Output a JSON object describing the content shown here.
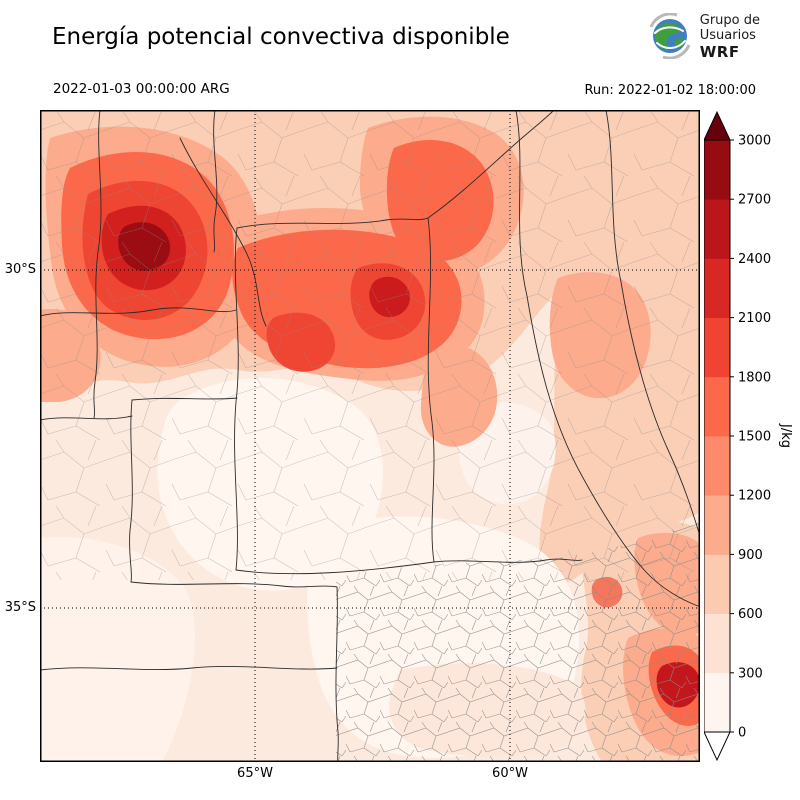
{
  "header": {
    "title": "Energía potencial convectiva disponible",
    "logo": {
      "line1": "Grupo de",
      "line2": "Usuarios",
      "line3": "WRF"
    }
  },
  "times": {
    "valid": "2022-01-03 00:00:00 ARG",
    "run": "Run: 2022-01-02 18:00:00"
  },
  "axes": {
    "y": [
      "30°S",
      "35°S"
    ],
    "x": [
      "65°W",
      "60°W"
    ]
  },
  "colorbar": {
    "label": "J/kg",
    "ticks": [
      0,
      300,
      600,
      900,
      1200,
      1500,
      1800,
      2100,
      2400,
      2700,
      3000
    ],
    "segment_colors": [
      "#fff5f0",
      "#fde2d3",
      "#fcc9b1",
      "#fcab8d",
      "#fc8a6b",
      "#fb694a",
      "#ef4432",
      "#d92723",
      "#bb161b",
      "#970c13"
    ],
    "over_color": "#67000d",
    "under_color": "#ffffff"
  },
  "chart_data": {
    "type": "heatmap",
    "title": "Energía potencial convectiva disponible",
    "variable": "CAPE (convective available potential energy)",
    "units": "J/kg",
    "valid_time": "2022-01-03 00:00:00 ARG",
    "model_run": "2022-01-02 18:00:00",
    "colormap": "Reds, filled contours every 300 J/kg, arrow extensions above 3000 and below 0",
    "levels": [
      0,
      300,
      600,
      900,
      1200,
      1500,
      1800,
      2100,
      2400,
      2700,
      3000
    ],
    "lat_gridlines_visible": [
      "30°S",
      "35°S"
    ],
    "lon_gridlines_visible": [
      "65°W",
      "60°W"
    ],
    "region": "Central/northern Argentina with province and department boundaries",
    "maxima": [
      {
        "approx_location": "~29.7°S 67.3°W (northwest)",
        "approx_value_jkg": "2700–3000+"
      },
      {
        "approx_location": "~30.3°S 63.5°W (north of Córdoba)",
        "approx_value_jkg": "1800–2400"
      },
      {
        "approx_location": "~28.5°S 61.5°W (top-center)",
        "approx_value_jkg": "1500–1800"
      },
      {
        "approx_location": "~36.5°S 56.8°W (southeast coast)",
        "approx_value_jkg": "1800–2400"
      }
    ],
    "minima_note": "Near-zero CAPE over the central band (~32°S–36°S interior) and the southwest"
  }
}
